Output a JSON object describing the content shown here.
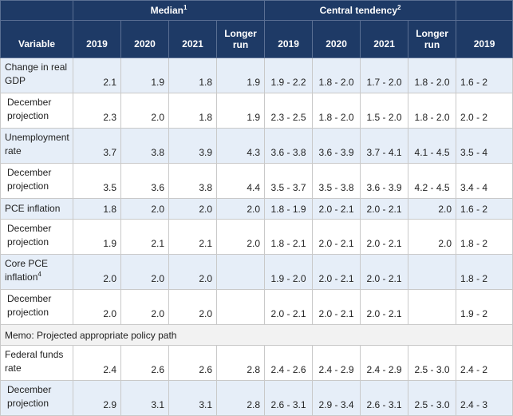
{
  "header": {
    "median": "Median",
    "median_sup": "1",
    "central": "Central tendency",
    "central_sup": "2",
    "variable": "Variable",
    "cols": [
      "2019",
      "2020",
      "2021",
      "Longer run",
      "2019",
      "2020",
      "2021",
      "Longer run",
      "2019"
    ]
  },
  "rows": [
    {
      "label": "Change in real GDP",
      "sup": "",
      "cells": [
        "2.1",
        "1.9",
        "1.8",
        "1.9",
        "1.9 - 2.2",
        "1.8 - 2.0",
        "1.7 - 2.0",
        "1.8 - 2.0",
        "1.6 - 2"
      ]
    },
    {
      "label": "December projection",
      "sup": "",
      "cells": [
        "2.3",
        "2.0",
        "1.8",
        "1.9",
        "2.3 - 2.5",
        "1.8 - 2.0",
        "1.5 - 2.0",
        "1.8 - 2.0",
        "2.0 - 2"
      ]
    },
    {
      "label": "Unemployment rate",
      "sup": "",
      "cells": [
        "3.7",
        "3.8",
        "3.9",
        "4.3",
        "3.6 - 3.8",
        "3.6 - 3.9",
        "3.7 - 4.1",
        "4.1 - 4.5",
        "3.5 - 4"
      ]
    },
    {
      "label": "December projection",
      "sup": "",
      "cells": [
        "3.5",
        "3.6",
        "3.8",
        "4.4",
        "3.5 - 3.7",
        "3.5 - 3.8",
        "3.6 - 3.9",
        "4.2 - 4.5",
        "3.4 - 4"
      ]
    },
    {
      "label": "PCE inflation",
      "sup": "",
      "cells": [
        "1.8",
        "2.0",
        "2.0",
        "2.0",
        "1.8 - 1.9",
        "2.0 - 2.1",
        "2.0 - 2.1",
        "2.0",
        "1.6 - 2"
      ]
    },
    {
      "label": "December projection",
      "sup": "",
      "cells": [
        "1.9",
        "2.1",
        "2.1",
        "2.0",
        "1.8 - 2.1",
        "2.0 - 2.1",
        "2.0 - 2.1",
        "2.0",
        "1.8 - 2"
      ]
    },
    {
      "label": "Core PCE inflation",
      "sup": "4",
      "cells": [
        "2.0",
        "2.0",
        "2.0",
        "",
        "1.9 - 2.0",
        "2.0 - 2.1",
        "2.0 - 2.1",
        "",
        "1.8 - 2"
      ]
    },
    {
      "label": "December projection",
      "sup": "",
      "cells": [
        "2.0",
        "2.0",
        "2.0",
        "",
        "2.0 - 2.1",
        "2.0 - 2.1",
        "2.0 - 2.1",
        "",
        "1.9 - 2"
      ]
    },
    {
      "label": "Federal funds rate",
      "sup": "",
      "cells": [
        "2.4",
        "2.6",
        "2.6",
        "2.8",
        "2.4 - 2.6",
        "2.4 - 2.9",
        "2.4 - 2.9",
        "2.5 - 3.0",
        "2.4 - 2"
      ]
    },
    {
      "label": "December projection",
      "sup": "",
      "cells": [
        "2.9",
        "3.1",
        "3.1",
        "2.8",
        "2.6 - 3.1",
        "2.9 - 3.4",
        "2.6 - 3.1",
        "2.5 - 3.0",
        "2.4 - 3"
      ]
    }
  ],
  "memo": "Memo: Projected appropriate policy path",
  "colors": {
    "header_bg": "#1e3a66",
    "header_text": "#ffffff",
    "row_shade": "#e6eef8",
    "memo_bg": "#f2f2f2",
    "border": "#c9c9c9"
  }
}
